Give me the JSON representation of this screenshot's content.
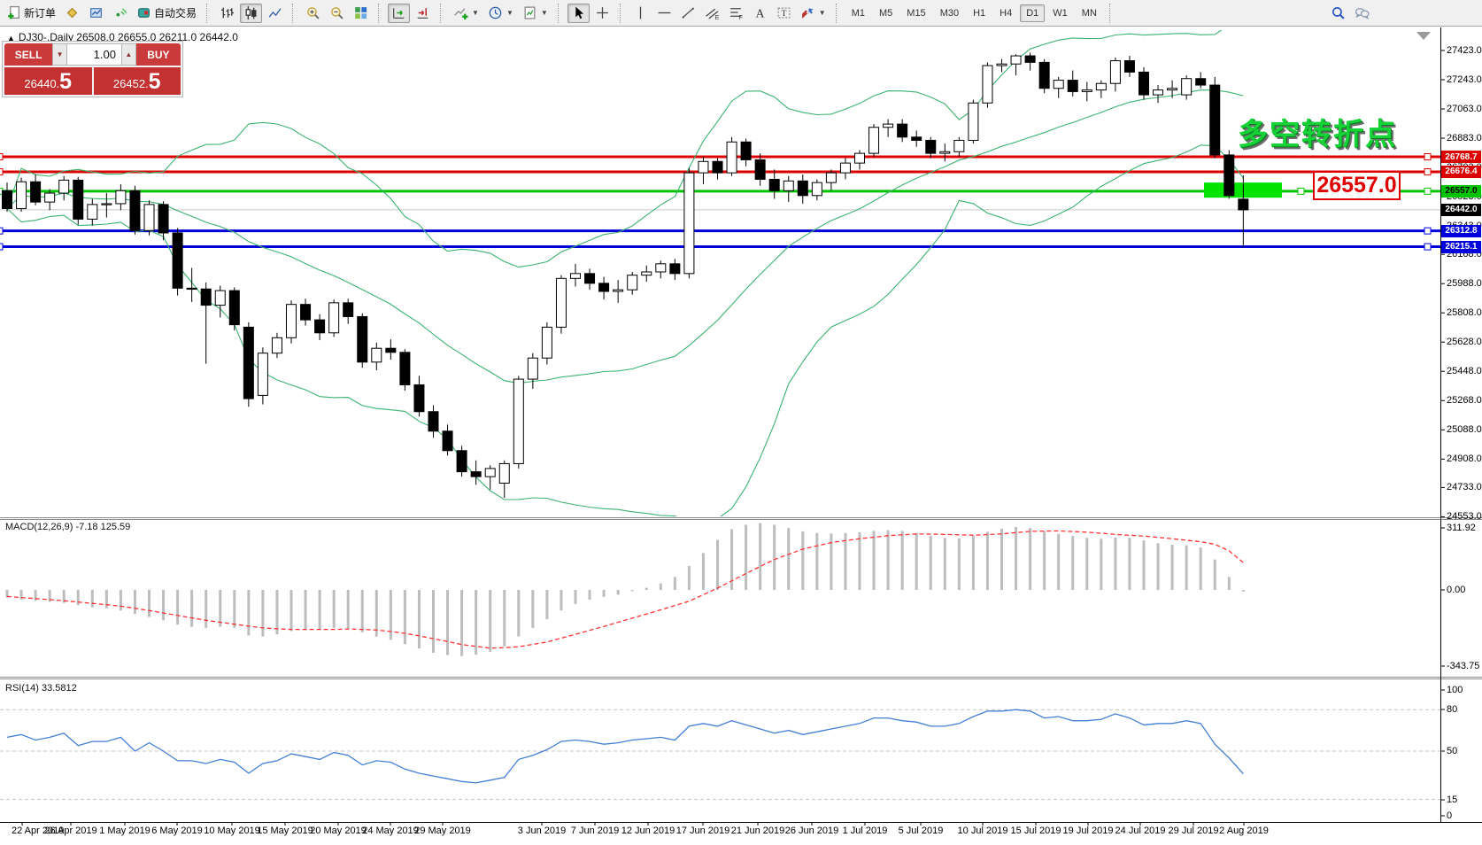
{
  "toolbar": {
    "buttons": [
      {
        "name": "new-order-button",
        "icon": "new-order-icon",
        "label": "新订单",
        "sep": false
      },
      {
        "name": "styler-button",
        "icon": "eraser-icon",
        "sep": false
      },
      {
        "name": "charts-window-button",
        "icon": "charts-window-icon",
        "sep": false
      },
      {
        "name": "signals-button",
        "icon": "signals-icon",
        "sep": false
      },
      {
        "name": "auto-trading-button",
        "icon": "auto-trading-icon",
        "label": "自动交易",
        "sep": false
      },
      {
        "name": "bar-chart-button",
        "icon": "bar-chart-icon",
        "sep": true
      },
      {
        "name": "candle-chart-button",
        "icon": "candle-chart-icon",
        "pressed": true,
        "sep": false
      },
      {
        "name": "line-chart-button",
        "icon": "line-chart-icon",
        "sep": false
      },
      {
        "name": "zoom-in-button",
        "icon": "zoom-in-icon",
        "sep": true
      },
      {
        "name": "zoom-out-button",
        "icon": "zoom-out-icon",
        "sep": false
      },
      {
        "name": "tile-windows-button",
        "icon": "tile-windows-icon",
        "sep": false
      },
      {
        "name": "auto-scroll-button",
        "icon": "auto-scroll-icon",
        "pressed": true,
        "sep": true
      },
      {
        "name": "chart-shift-button",
        "icon": "chart-shift-icon",
        "sep": false
      },
      {
        "name": "indicators-button",
        "icon": "indicators-icon",
        "dropdown": true,
        "sep": true
      },
      {
        "name": "periods-button",
        "icon": "periods-icon",
        "dropdown": true,
        "sep": false
      },
      {
        "name": "templates-button",
        "icon": "templates-icon",
        "dropdown": true,
        "sep": false
      },
      {
        "name": "cursor-button",
        "icon": "cursor-icon",
        "pressed": true,
        "sep": true
      },
      {
        "name": "crosshair-button",
        "icon": "crosshair-icon",
        "sep": false
      },
      {
        "name": "vertical-line-button",
        "icon": "vline-icon",
        "sep": true
      },
      {
        "name": "horizontal-line-button",
        "icon": "hline-icon",
        "sep": false
      },
      {
        "name": "trendline-button",
        "icon": "trendline-icon",
        "sep": false
      },
      {
        "name": "equidistant-channel-button",
        "icon": "channel-icon",
        "sep": false
      },
      {
        "name": "fibonacci-button",
        "icon": "fibonacci-icon",
        "sep": false
      },
      {
        "name": "text-button",
        "icon": "text-icon",
        "sep": false
      },
      {
        "name": "text-label-button",
        "icon": "text-label-icon",
        "sep": false
      },
      {
        "name": "arrows-button",
        "icon": "arrows-icon",
        "dropdown": true,
        "sep": false
      }
    ],
    "timeframes": [
      "M1",
      "M5",
      "M15",
      "M30",
      "H1",
      "H4",
      "D1",
      "W1",
      "MN"
    ],
    "active_timeframe": "D1",
    "right_buttons": [
      {
        "name": "search-button",
        "icon": "search-icon"
      },
      {
        "name": "chat-button",
        "icon": "chat-icon"
      }
    ]
  },
  "one_click": {
    "sell_label": "SELL",
    "buy_label": "BUY",
    "volume": "1.00",
    "spin_down_icon": "▼",
    "spin_up_icon": "▲",
    "sell_price_small": "26440.",
    "sell_price_big": "5",
    "buy_price_small": "26452.",
    "buy_price_big": "5"
  },
  "chart": {
    "title_arrow": "▲",
    "title": "DJ30-,Daily  26508.0 26655.0 26211.0 26442.0"
  },
  "annotations": {
    "turning_point_text": "多空转折点",
    "price_tag_text": "26557.0"
  },
  "chart_data": {
    "type": "candlestick",
    "symbol": "DJ30-",
    "period": "Daily",
    "last_ohlc": {
      "open": 26508.0,
      "high": 26655.0,
      "low": 26211.0,
      "close": 26442.0
    },
    "ohlc": [
      [
        26560,
        26610,
        26430,
        26450
      ],
      [
        26450,
        26640,
        26430,
        26615
      ],
      [
        26615,
        26660,
        26470,
        26490
      ],
      [
        26490,
        26570,
        26440,
        26545
      ],
      [
        26545,
        26650,
        26500,
        26625
      ],
      [
        26625,
        26645,
        26350,
        26385
      ],
      [
        26385,
        26510,
        26345,
        26475
      ],
      [
        26475,
        26545,
        26395,
        26480
      ],
      [
        26480,
        26600,
        26440,
        26560
      ],
      [
        26560,
        26590,
        26290,
        26315
      ],
      [
        26315,
        26500,
        26285,
        26475
      ],
      [
        26475,
        26495,
        26255,
        26300
      ],
      [
        26300,
        26330,
        25915,
        25960
      ],
      [
        25960,
        26085,
        25875,
        25955
      ],
      [
        25955,
        25995,
        25495,
        25855
      ],
      [
        25855,
        25975,
        25780,
        25945
      ],
      [
        25945,
        25965,
        25700,
        25735
      ],
      [
        25720,
        25750,
        25230,
        25280
      ],
      [
        25300,
        25595,
        25245,
        25560
      ],
      [
        25560,
        25685,
        25530,
        25655
      ],
      [
        25655,
        25885,
        25620,
        25860
      ],
      [
        25860,
        25895,
        25730,
        25765
      ],
      [
        25765,
        25800,
        25640,
        25685
      ],
      [
        25685,
        25890,
        25660,
        25870
      ],
      [
        25870,
        25895,
        25740,
        25785
      ],
      [
        25785,
        25805,
        25470,
        25505
      ],
      [
        25505,
        25625,
        25455,
        25590
      ],
      [
        25590,
        25645,
        25520,
        25565
      ],
      [
        25565,
        25585,
        25330,
        25365
      ],
      [
        25365,
        25420,
        25170,
        25200
      ],
      [
        25200,
        25240,
        25040,
        25080
      ],
      [
        25080,
        25120,
        24930,
        24960
      ],
      [
        24960,
        24990,
        24800,
        24830
      ],
      [
        24830,
        24900,
        24750,
        24800
      ],
      [
        24800,
        24870,
        24720,
        24850
      ],
      [
        24760,
        24900,
        24670,
        24880
      ],
      [
        24880,
        25420,
        24850,
        25400
      ],
      [
        25400,
        25560,
        25340,
        25530
      ],
      [
        25530,
        25750,
        25490,
        25720
      ],
      [
        25720,
        26040,
        25680,
        26020
      ],
      [
        26020,
        26110,
        25970,
        26050
      ],
      [
        26050,
        26080,
        25950,
        25990
      ],
      [
        25990,
        26030,
        25890,
        25940
      ],
      [
        25940,
        26010,
        25870,
        25950
      ],
      [
        25950,
        26060,
        25920,
        26040
      ],
      [
        26040,
        26100,
        26000,
        26060
      ],
      [
        26060,
        26130,
        26020,
        26110
      ],
      [
        26110,
        26140,
        26010,
        26050
      ],
      [
        26050,
        26700,
        26020,
        26670
      ],
      [
        26670,
        26770,
        26600,
        26740
      ],
      [
        26740,
        26760,
        26630,
        26670
      ],
      [
        26670,
        26890,
        26650,
        26860
      ],
      [
        26860,
        26880,
        26710,
        26750
      ],
      [
        26750,
        26790,
        26590,
        26630
      ],
      [
        26630,
        26690,
        26510,
        26560
      ],
      [
        26560,
        26650,
        26490,
        26620
      ],
      [
        26620,
        26660,
        26480,
        26530
      ],
      [
        26530,
        26630,
        26500,
        26610
      ],
      [
        26610,
        26690,
        26560,
        26670
      ],
      [
        26670,
        26760,
        26630,
        26730
      ],
      [
        26730,
        26810,
        26690,
        26790
      ],
      [
        26790,
        26970,
        26770,
        26950
      ],
      [
        26950,
        27000,
        26890,
        26970
      ],
      [
        26970,
        27000,
        26860,
        26890
      ],
      [
        26890,
        26930,
        26830,
        26870
      ],
      [
        26870,
        26890,
        26760,
        26790
      ],
      [
        26790,
        26850,
        26740,
        26800
      ],
      [
        26800,
        26890,
        26770,
        26870
      ],
      [
        26870,
        27120,
        26850,
        27100
      ],
      [
        27100,
        27350,
        27070,
        27330
      ],
      [
        27330,
        27370,
        27290,
        27340
      ],
      [
        27340,
        27400,
        27270,
        27390
      ],
      [
        27390,
        27410,
        27300,
        27350
      ],
      [
        27350,
        27370,
        27160,
        27190
      ],
      [
        27190,
        27260,
        27130,
        27240
      ],
      [
        27240,
        27300,
        27140,
        27170
      ],
      [
        27170,
        27230,
        27110,
        27180
      ],
      [
        27180,
        27240,
        27130,
        27220
      ],
      [
        27220,
        27380,
        27170,
        27360
      ],
      [
        27360,
        27390,
        27260,
        27290
      ],
      [
        27290,
        27320,
        27120,
        27150
      ],
      [
        27150,
        27210,
        27100,
        27180
      ],
      [
        27180,
        27240,
        27130,
        27190
      ],
      [
        27150,
        27270,
        27120,
        27250
      ],
      [
        27250,
        27290,
        27190,
        27210
      ],
      [
        27210,
        27260,
        26760,
        26780
      ],
      [
        26780,
        26810,
        26510,
        26530
      ],
      [
        26508,
        26655,
        26211,
        26442
      ]
    ],
    "date_labels": [
      "22 Apr 2019",
      "26 Apr 2019",
      "1 May 2019",
      "6 May 2019",
      "10 May 2019",
      "15 May 2019",
      "20 May 2019",
      "24 May 2019",
      "29 May 2019",
      "3 Jun 2019",
      "7 Jun 2019",
      "12 Jun 2019",
      "17 Jun 2019",
      "21 Jun 2019",
      "26 Jun 2019",
      "1 Jul 2019",
      "5 Jul 2019",
      "10 Jul 2019",
      "15 Jul 2019",
      "19 Jul 2019",
      "24 Jul 2019",
      "29 Jul 2019",
      "2 Aug 2019"
    ],
    "price_axis_labels": [
      "27423.0",
      "27243.0",
      "27063.0",
      "26883.0",
      "26703.0",
      "26523.0",
      "26343.0",
      "26168.0",
      "25988.0",
      "25808.0",
      "25628.0",
      "25448.0",
      "25268.0",
      "25088.0",
      "24908.0",
      "24733.0",
      "24553.0"
    ],
    "level_lines": [
      {
        "value": 26768.7,
        "label": "26768.7",
        "color": "#dd0000",
        "text_color": "#ffffff"
      },
      {
        "value": 26676.4,
        "label": "26676.4",
        "color": "#dd0000",
        "text_color": "#ffffff"
      },
      {
        "value": 26557.0,
        "label": "26557.0",
        "color": "#00c400",
        "text_color": "#000000"
      },
      {
        "value": 26312.8,
        "label": "26312.8",
        "color": "#0000dd",
        "text_color": "#ffffff"
      },
      {
        "value": 26215.1,
        "label": "26215.1",
        "color": "#0000dd",
        "text_color": "#ffffff"
      }
    ],
    "bid": {
      "value": 26442.0,
      "label": "26442.0",
      "line_color": "#c8c8c8",
      "badge_bg": "#000000",
      "badge_fg": "#ffffff"
    },
    "highlight_zone": {
      "price_top": 26610,
      "price_bottom": 26517,
      "color": "#00e400"
    },
    "bollinger": {
      "period": 20,
      "deviation": 2,
      "color": "#3cb371"
    },
    "macd": {
      "label": "MACD(12,26,9) -7.18 125.59",
      "current_main": -7.18,
      "current_signal": 125.59,
      "scale_labels": [
        "311.92",
        "0.00",
        "-343.75"
      ],
      "hist_color": "#bdbdbd",
      "signal_color": "#ff3333",
      "hist": [
        -35,
        -45,
        -50,
        -55,
        -60,
        -70,
        -80,
        -85,
        -95,
        -110,
        -125,
        -140,
        -160,
        -170,
        -175,
        -170,
        -175,
        -210,
        -215,
        -205,
        -190,
        -185,
        -180,
        -175,
        -180,
        -195,
        -215,
        -230,
        -250,
        -270,
        -290,
        -300,
        -305,
        -298,
        -285,
        -260,
        -215,
        -175,
        -135,
        -95,
        -65,
        -45,
        -32,
        -22,
        -5,
        10,
        30,
        60,
        110,
        170,
        230,
        280,
        300,
        308,
        300,
        285,
        270,
        262,
        260,
        262,
        266,
        272,
        275,
        272,
        262,
        250,
        240,
        238,
        248,
        268,
        282,
        290,
        285,
        270,
        258,
        248,
        240,
        236,
        242,
        240,
        228,
        215,
        208,
        205,
        195,
        140,
        60,
        -7.18
      ],
      "signal": [
        -30,
        -35,
        -40,
        -45,
        -50,
        -56,
        -62,
        -68,
        -75,
        -85,
        -95,
        -106,
        -118,
        -129,
        -140,
        -149,
        -158,
        -167,
        -175,
        -179,
        -182,
        -182,
        -182,
        -182,
        -180,
        -182,
        -185,
        -192,
        -200,
        -212,
        -225,
        -238,
        -252,
        -260,
        -268,
        -266,
        -262,
        -251,
        -240,
        -222,
        -205,
        -186,
        -168,
        -149,
        -130,
        -111,
        -92,
        -72,
        -52,
        -22,
        8,
        42,
        75,
        108,
        140,
        164,
        188,
        203,
        218,
        227,
        236,
        243,
        250,
        254,
        258,
        257,
        256,
        254,
        252,
        255,
        258,
        264,
        270,
        271,
        272,
        269,
        266,
        261,
        256,
        252,
        248,
        242,
        236,
        229,
        222,
        210,
        180,
        125.59
      ]
    },
    "rsi": {
      "label": "RSI(14) 33.5812",
      "current": 33.5812,
      "scale_labels": [
        "100",
        "80",
        "50",
        "15",
        "0"
      ],
      "levels": [
        80,
        50,
        15
      ],
      "color": "#447fd6",
      "values": [
        60,
        62,
        58,
        60,
        63,
        54,
        57,
        57,
        60,
        50,
        56,
        50,
        43,
        43,
        41,
        44,
        42,
        34,
        41,
        43,
        48,
        46,
        44,
        49,
        47,
        40,
        43,
        42,
        37,
        34,
        32,
        30,
        28,
        27,
        29,
        31,
        44,
        47,
        51,
        57,
        58,
        57,
        55,
        56,
        58,
        59,
        60,
        58,
        68,
        70,
        68,
        72,
        69,
        66,
        63,
        65,
        62,
        64,
        66,
        68,
        70,
        74,
        74,
        72,
        71,
        68,
        68,
        70,
        75,
        79,
        79,
        80,
        79,
        74,
        75,
        72,
        72,
        73,
        77,
        74,
        69,
        70,
        70,
        72,
        70,
        55,
        45,
        33.58
      ]
    }
  }
}
